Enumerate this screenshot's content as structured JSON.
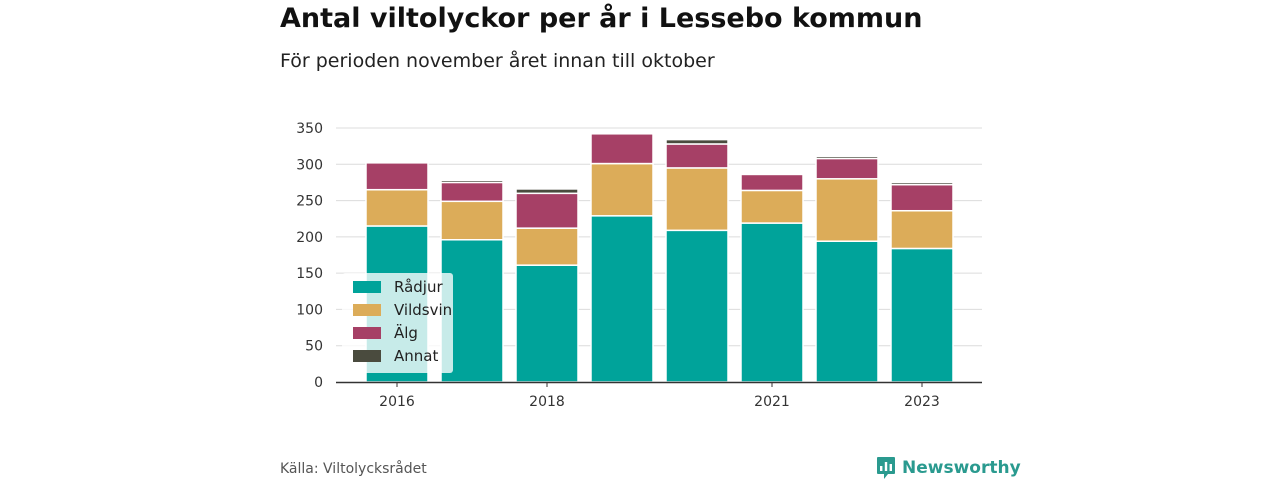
{
  "title": "Antal viltolyckor per år i Lessebo kommun",
  "subtitle": "För perioden november året innan till oktober",
  "source": "Källa: Viltolycksrådet",
  "brand": {
    "name": "Newsworthy",
    "icon": "newsworthy-logo-icon",
    "color": "#2a9a8f"
  },
  "chart_data": {
    "type": "bar",
    "stacked": true,
    "title": "Antal viltolyckor per år i Lessebo kommun",
    "subtitle": "För perioden november året innan till oktober",
    "xlabel": "",
    "ylabel": "",
    "x": [
      2016,
      2017,
      2018,
      2019,
      2020,
      2021,
      2022,
      2023
    ],
    "x_tick_labels": [
      {
        "x": 2016,
        "label": "2016"
      },
      {
        "x": 2018,
        "label": "2018"
      },
      {
        "x": 2021,
        "label": "2021"
      },
      {
        "x": 2023,
        "label": "2023"
      }
    ],
    "ylim": [
      0,
      350
    ],
    "y_ticks": [
      0,
      50,
      100,
      150,
      200,
      250,
      300,
      350
    ],
    "grid": true,
    "legend_position": "bottom-left",
    "series": [
      {
        "name": "Rådjur",
        "color": "#00a39a",
        "values": [
          215,
          196,
          161,
          229,
          209,
          219,
          194,
          184
        ]
      },
      {
        "name": "Vildsvin",
        "color": "#dcac59",
        "values": [
          50,
          53,
          51,
          72,
          86,
          45,
          86,
          52
        ]
      },
      {
        "name": "Älg",
        "color": "#a64066",
        "values": [
          37,
          26,
          48,
          41,
          33,
          22,
          28,
          36
        ]
      },
      {
        "name": "Annat",
        "color": "#4a4b3e",
        "values": [
          0,
          3,
          6,
          0,
          6,
          0,
          3,
          3
        ]
      }
    ]
  }
}
